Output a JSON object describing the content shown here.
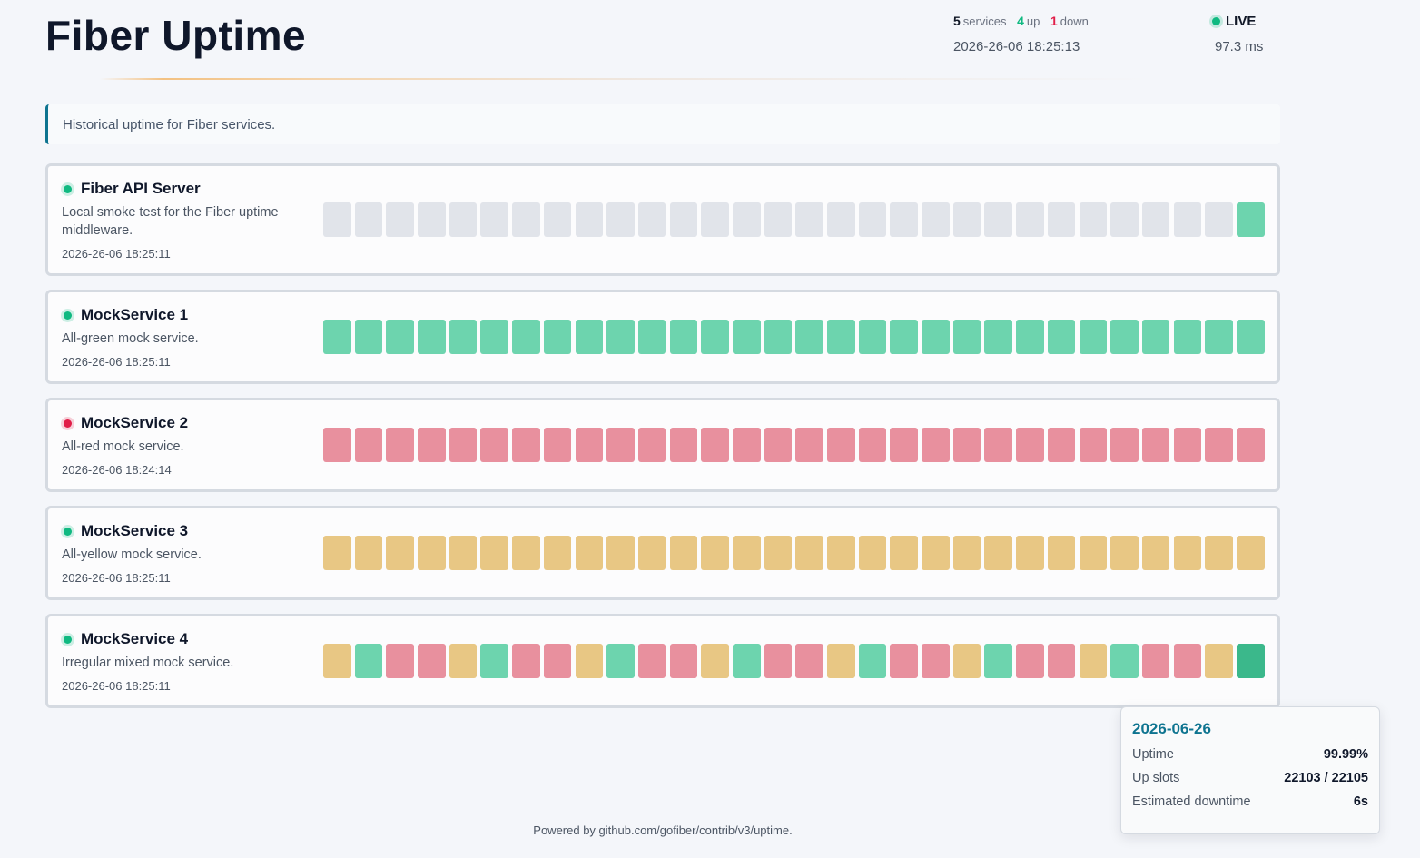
{
  "header": {
    "title": "Fiber Uptime",
    "stats": {
      "services_count": "5",
      "services_label": "services",
      "up_count": "4",
      "up_label": "up",
      "down_count": "1",
      "down_label": "down"
    },
    "timestamp": "2026-26-06 18:25:13",
    "live_label": "LIVE",
    "latency": "97.3 ms"
  },
  "banner": {
    "text": "Historical uptime for Fiber services."
  },
  "colors": {
    "up": "#6dd4ae",
    "down": "#e8909e",
    "degraded": "#e8c784",
    "no_data": "#e1e4ea",
    "accent": "#0e7490"
  },
  "services": [
    {
      "name": "Fiber API Server",
      "description": "Local smoke test for the Fiber uptime middleware.",
      "timestamp": "2026-26-06 18:25:11",
      "status": "up",
      "history": [
        "n",
        "n",
        "n",
        "n",
        "n",
        "n",
        "n",
        "n",
        "n",
        "n",
        "n",
        "n",
        "n",
        "n",
        "n",
        "n",
        "n",
        "n",
        "n",
        "n",
        "n",
        "n",
        "n",
        "n",
        "n",
        "n",
        "n",
        "n",
        "n",
        "g"
      ]
    },
    {
      "name": "MockService 1",
      "description": "All-green mock service.",
      "timestamp": "2026-26-06 18:25:11",
      "status": "up",
      "history": [
        "g",
        "g",
        "g",
        "g",
        "g",
        "g",
        "g",
        "g",
        "g",
        "g",
        "g",
        "g",
        "g",
        "g",
        "g",
        "g",
        "g",
        "g",
        "g",
        "g",
        "g",
        "g",
        "g",
        "g",
        "g",
        "g",
        "g",
        "g",
        "g",
        "g"
      ]
    },
    {
      "name": "MockService 2",
      "description": "All-red mock service.",
      "timestamp": "2026-26-06 18:24:14",
      "status": "down",
      "history": [
        "r",
        "r",
        "r",
        "r",
        "r",
        "r",
        "r",
        "r",
        "r",
        "r",
        "r",
        "r",
        "r",
        "r",
        "r",
        "r",
        "r",
        "r",
        "r",
        "r",
        "r",
        "r",
        "r",
        "r",
        "r",
        "r",
        "r",
        "r",
        "r",
        "r"
      ]
    },
    {
      "name": "MockService 3",
      "description": "All-yellow mock service.",
      "timestamp": "2026-26-06 18:25:11",
      "status": "up",
      "history": [
        "y",
        "y",
        "y",
        "y",
        "y",
        "y",
        "y",
        "y",
        "y",
        "y",
        "y",
        "y",
        "y",
        "y",
        "y",
        "y",
        "y",
        "y",
        "y",
        "y",
        "y",
        "y",
        "y",
        "y",
        "y",
        "y",
        "y",
        "y",
        "y",
        "y"
      ]
    },
    {
      "name": "MockService 4",
      "description": "Irregular mixed mock service.",
      "timestamp": "2026-26-06 18:25:11",
      "status": "up",
      "history": [
        "y",
        "g",
        "r",
        "r",
        "y",
        "g",
        "r",
        "r",
        "y",
        "g",
        "r",
        "r",
        "y",
        "g",
        "r",
        "r",
        "y",
        "g",
        "r",
        "r",
        "y",
        "g",
        "r",
        "r",
        "y",
        "g",
        "r",
        "r",
        "y",
        "hl"
      ]
    }
  ],
  "tooltip": {
    "date": "2026-06-26",
    "uptime_label": "Uptime",
    "uptime_value": "99.99%",
    "slots_label": "Up slots",
    "slots_value": "22103 / 22105",
    "downtime_label": "Estimated downtime",
    "downtime_value": "6s"
  },
  "footer": {
    "text": "Powered by github.com/gofiber/contrib/v3/uptime."
  }
}
